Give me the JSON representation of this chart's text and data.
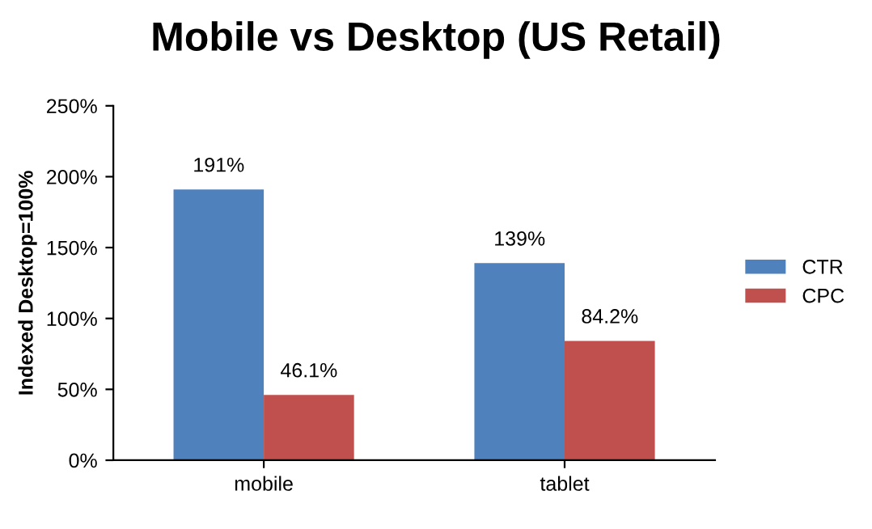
{
  "chart_data": {
    "type": "bar",
    "title": "Mobile vs Desktop (US Retail)",
    "ylabel": "Indexed Desktop=100%",
    "categories": [
      "mobile",
      "tablet"
    ],
    "series": [
      {
        "name": "CTR",
        "color": "#4f81bd",
        "values": [
          191,
          139
        ],
        "value_labels": [
          "191%",
          "139%"
        ]
      },
      {
        "name": "CPC",
        "color": "#c0504d",
        "values": [
          46.1,
          84.2
        ],
        "value_labels": [
          "46.1%",
          "84.2%"
        ]
      }
    ],
    "ylim": [
      0,
      250
    ],
    "yticks": [
      {
        "value": 0,
        "label": "0%"
      },
      {
        "value": 50,
        "label": "50%"
      },
      {
        "value": 100,
        "label": "100%"
      },
      {
        "value": 150,
        "label": "150%"
      },
      {
        "value": 200,
        "label": "200%"
      },
      {
        "value": 250,
        "label": "250%"
      }
    ],
    "grid": false,
    "legend": "right"
  }
}
